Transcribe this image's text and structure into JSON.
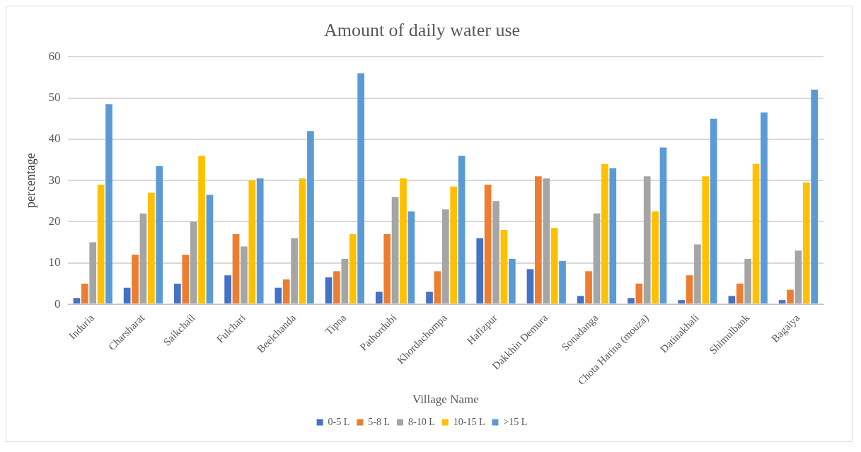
{
  "chart_data": {
    "type": "bar",
    "title": "Amount of daily water use",
    "xlabel": "Village Name",
    "ylabel": "percentage",
    "categories": [
      "Induria",
      "Charsharat",
      "Saikchail",
      "Fulchari",
      "Beelchanda",
      "Tipna",
      "Pathordubi",
      "Khordachompa",
      "Hafizpur",
      "Dakkhin Demura",
      "Sonadanga",
      "Chota Harina (mouza)",
      "Datinakhali",
      "Shimulbank",
      "Bagaiya"
    ],
    "series": [
      {
        "name": "0-5 L",
        "color": "#4472c4",
        "values": [
          1.5,
          4,
          5,
          7,
          4,
          6.5,
          3,
          3,
          16,
          8.5,
          2,
          1.5,
          1,
          2,
          1
        ]
      },
      {
        "name": "5-8 L",
        "color": "#ed7d31",
        "values": [
          5,
          12,
          12,
          17,
          6,
          8,
          17,
          8,
          29,
          31,
          8,
          5,
          7,
          5,
          3.5
        ]
      },
      {
        "name": "8-10 L",
        "color": "#a5a5a5",
        "values": [
          15,
          22,
          20,
          14,
          16,
          11,
          26,
          23,
          25,
          30.5,
          22,
          31,
          14.5,
          11,
          13
        ]
      },
      {
        "name": "10-15 L",
        "color": "#ffc000",
        "values": [
          29,
          27,
          36,
          30,
          30.5,
          17,
          30.5,
          28.5,
          18,
          18.5,
          34,
          22.5,
          31,
          34,
          29.5
        ]
      },
      {
        "name": ">15 L",
        "color": "#5b9bd5",
        "values": [
          48.5,
          33.5,
          26.5,
          30.5,
          42,
          56,
          22.5,
          36,
          11,
          10.5,
          33,
          38,
          45,
          46.5,
          52
        ]
      }
    ],
    "ylim": [
      0,
      60
    ],
    "yticks": [
      0,
      10,
      20,
      30,
      40,
      50,
      60
    ],
    "grid": "y",
    "legend": "bottom"
  }
}
